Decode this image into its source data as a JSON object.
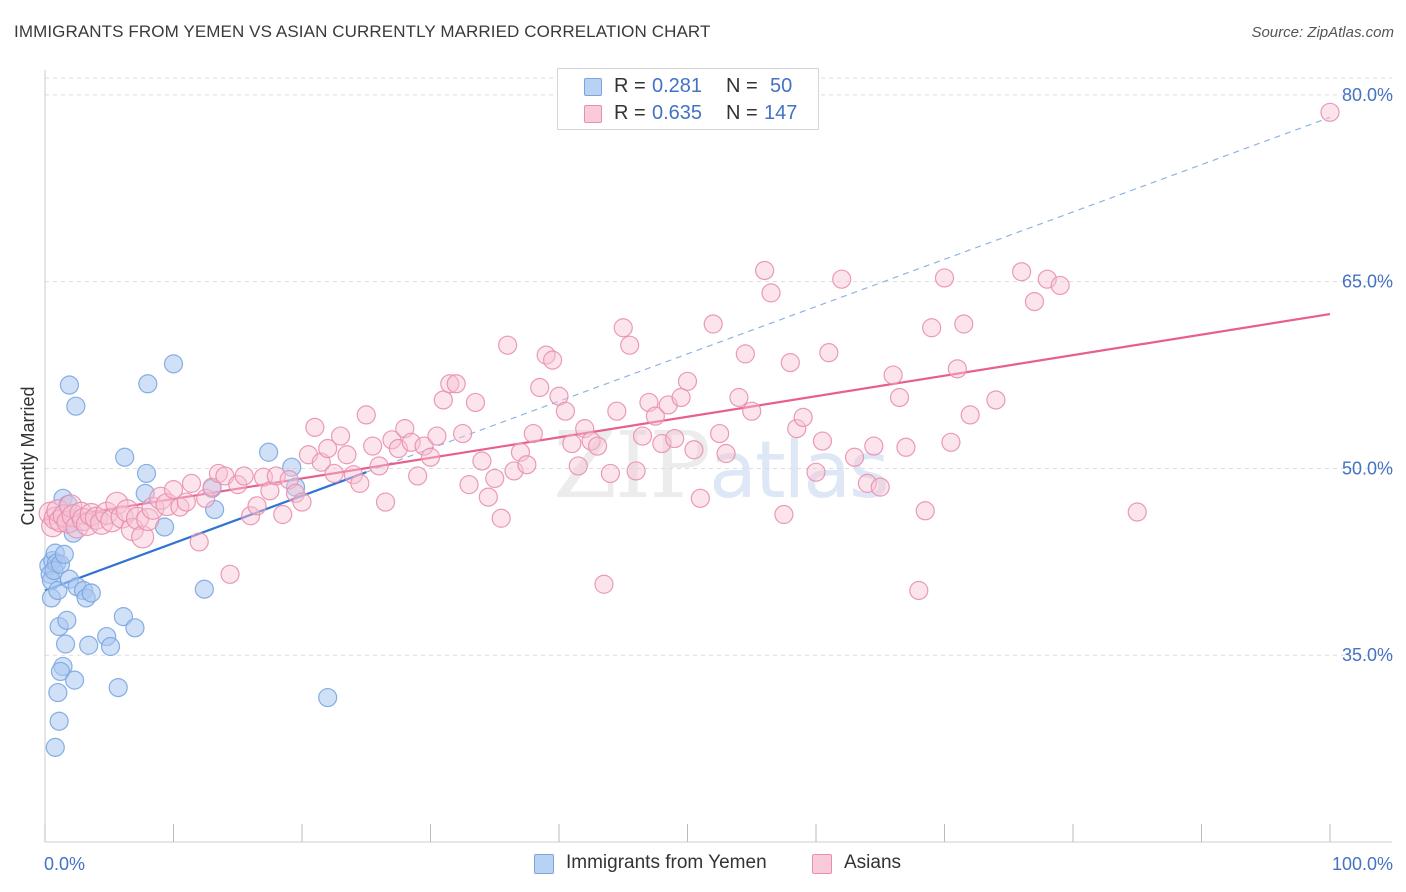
{
  "chart_data": {
    "type": "scatter",
    "title": "IMMIGRANTS FROM YEMEN VS ASIAN CURRENTLY MARRIED CORRELATION CHART",
    "source": "Source: ZipAtlas.com",
    "xlabel": "",
    "ylabel": "Currently Married",
    "xlim": [
      0,
      100
    ],
    "ylim": [
      20,
      82
    ],
    "x_tick_labels": [
      "0.0%",
      "100.0%"
    ],
    "y_ticks": [
      35,
      50,
      65,
      80
    ],
    "y_tick_labels": [
      "35.0%",
      "50.0%",
      "65.0%",
      "80.0%"
    ],
    "grid": true,
    "watermark": "ZIPatlas",
    "legend_stats": [
      {
        "r_label": "R =",
        "r_value": "0.281",
        "n_label": "N =",
        "n_value": "50"
      },
      {
        "r_label": "R =",
        "r_value": "0.635",
        "n_label": "N =",
        "n_value": "147"
      }
    ],
    "series": [
      {
        "name": "Immigrants from Yemen",
        "color": "#7aa6e0",
        "fill": "#a9c7f0",
        "line_color": "#2f74d0",
        "trend": {
          "x0": 0,
          "y0": 40.2,
          "x1": 25,
          "y1": 49.7
        },
        "points": [
          [
            0.3,
            42.2
          ],
          [
            0.4,
            41.5
          ],
          [
            0.5,
            41.0
          ],
          [
            0.6,
            42.6
          ],
          [
            0.5,
            39.6
          ],
          [
            0.8,
            43.2
          ],
          [
            0.9,
            42.4
          ],
          [
            0.7,
            41.8
          ],
          [
            1.0,
            40.2
          ],
          [
            1.2,
            42.3
          ],
          [
            1.5,
            43.1
          ],
          [
            1.4,
            47.6
          ],
          [
            1.8,
            47.1
          ],
          [
            2.0,
            45.6
          ],
          [
            2.2,
            44.8
          ],
          [
            1.1,
            37.3
          ],
          [
            1.7,
            37.8
          ],
          [
            1.6,
            35.9
          ],
          [
            1.4,
            34.1
          ],
          [
            1.2,
            33.7
          ],
          [
            2.3,
            33.0
          ],
          [
            1.0,
            32.0
          ],
          [
            1.1,
            29.7
          ],
          [
            0.8,
            27.6
          ],
          [
            1.9,
            41.1
          ],
          [
            2.5,
            40.5
          ],
          [
            3.0,
            40.2
          ],
          [
            3.2,
            39.6
          ],
          [
            3.6,
            40.0
          ],
          [
            3.4,
            35.8
          ],
          [
            4.8,
            36.5
          ],
          [
            5.1,
            35.7
          ],
          [
            5.7,
            32.4
          ],
          [
            6.1,
            38.1
          ],
          [
            7.0,
            37.2
          ],
          [
            6.2,
            50.9
          ],
          [
            7.9,
            49.6
          ],
          [
            7.8,
            48.0
          ],
          [
            9.3,
            45.3
          ],
          [
            10.0,
            58.4
          ],
          [
            8.0,
            56.8
          ],
          [
            1.9,
            56.7
          ],
          [
            2.4,
            55.0
          ],
          [
            13.0,
            48.4
          ],
          [
            13.2,
            46.7
          ],
          [
            12.4,
            40.3
          ],
          [
            17.4,
            51.3
          ],
          [
            19.2,
            50.1
          ],
          [
            19.5,
            48.5
          ],
          [
            22.0,
            31.6
          ]
        ]
      },
      {
        "name": "Asians",
        "color": "#e98fae",
        "fill": "#f7c3d4",
        "line_color": "#e8608a",
        "trend": {
          "x0": 0,
          "y0": 45.9,
          "x1": 100,
          "y1": 62.4
        },
        "points": [
          [
            0.4,
            46.4
          ],
          [
            0.6,
            45.4
          ],
          [
            0.8,
            46.0
          ],
          [
            1.0,
            46.6
          ],
          [
            1.2,
            45.8
          ],
          [
            1.5,
            46.2
          ],
          [
            1.8,
            45.7
          ],
          [
            2.0,
            47.0
          ],
          [
            2.2,
            46.2
          ],
          [
            2.5,
            45.3
          ],
          [
            2.8,
            46.4
          ],
          [
            3.0,
            45.9
          ],
          [
            3.3,
            45.5
          ],
          [
            3.6,
            46.3
          ],
          [
            4.0,
            46.0
          ],
          [
            4.4,
            45.6
          ],
          [
            4.8,
            46.4
          ],
          [
            5.2,
            45.8
          ],
          [
            5.6,
            47.2
          ],
          [
            6.0,
            46.1
          ],
          [
            6.4,
            46.6
          ],
          [
            6.8,
            45.1
          ],
          [
            7.2,
            46.0
          ],
          [
            7.6,
            44.5
          ],
          [
            8.0,
            45.9
          ],
          [
            8.4,
            46.8
          ],
          [
            9.0,
            47.6
          ],
          [
            9.5,
            47.1
          ],
          [
            10.0,
            48.3
          ],
          [
            10.5,
            46.9
          ],
          [
            11.0,
            47.3
          ],
          [
            11.4,
            48.8
          ],
          [
            12.0,
            44.1
          ],
          [
            12.5,
            47.6
          ],
          [
            13.0,
            48.5
          ],
          [
            13.5,
            49.6
          ],
          [
            14.0,
            49.4
          ],
          [
            14.4,
            41.5
          ],
          [
            15.0,
            48.7
          ],
          [
            15.5,
            49.4
          ],
          [
            16.0,
            46.2
          ],
          [
            16.5,
            47.0
          ],
          [
            17.0,
            49.3
          ],
          [
            17.5,
            48.2
          ],
          [
            18.0,
            49.4
          ],
          [
            18.5,
            46.3
          ],
          [
            19.0,
            49.1
          ],
          [
            19.5,
            48.0
          ],
          [
            20.0,
            47.3
          ],
          [
            20.5,
            51.1
          ],
          [
            21.0,
            53.3
          ],
          [
            21.5,
            50.5
          ],
          [
            22.0,
            51.6
          ],
          [
            22.5,
            49.6
          ],
          [
            23.0,
            52.6
          ],
          [
            23.5,
            51.1
          ],
          [
            24.0,
            49.5
          ],
          [
            24.5,
            48.8
          ],
          [
            25.0,
            54.3
          ],
          [
            25.5,
            51.8
          ],
          [
            26.0,
            50.2
          ],
          [
            26.5,
            47.3
          ],
          [
            27.0,
            52.3
          ],
          [
            27.5,
            51.6
          ],
          [
            28.0,
            53.2
          ],
          [
            28.5,
            52.1
          ],
          [
            29.0,
            49.4
          ],
          [
            29.5,
            51.8
          ],
          [
            30.0,
            50.9
          ],
          [
            30.5,
            52.6
          ],
          [
            31.0,
            55.5
          ],
          [
            31.5,
            56.8
          ],
          [
            32.0,
            56.8
          ],
          [
            32.5,
            52.8
          ],
          [
            33.0,
            48.7
          ],
          [
            33.5,
            55.3
          ],
          [
            34.0,
            50.6
          ],
          [
            34.5,
            47.7
          ],
          [
            35.0,
            49.2
          ],
          [
            35.5,
            46.0
          ],
          [
            36.0,
            59.9
          ],
          [
            36.5,
            49.8
          ],
          [
            37.0,
            51.3
          ],
          [
            37.5,
            50.3
          ],
          [
            38.0,
            52.8
          ],
          [
            38.5,
            56.5
          ],
          [
            39.0,
            59.1
          ],
          [
            39.5,
            58.7
          ],
          [
            40.0,
            55.8
          ],
          [
            40.5,
            54.6
          ],
          [
            41.0,
            52.0
          ],
          [
            41.5,
            50.2
          ],
          [
            42.0,
            53.2
          ],
          [
            42.5,
            52.2
          ],
          [
            43.0,
            51.8
          ],
          [
            43.5,
            40.7
          ],
          [
            44.0,
            49.6
          ],
          [
            44.5,
            54.6
          ],
          [
            45.0,
            61.3
          ],
          [
            45.5,
            59.9
          ],
          [
            46.0,
            49.8
          ],
          [
            46.5,
            52.6
          ],
          [
            47.0,
            55.3
          ],
          [
            47.5,
            54.2
          ],
          [
            48.0,
            52.0
          ],
          [
            48.5,
            55.1
          ],
          [
            49.0,
            52.4
          ],
          [
            49.5,
            55.7
          ],
          [
            50.0,
            57.0
          ],
          [
            50.5,
            51.5
          ],
          [
            51.0,
            47.6
          ],
          [
            52.0,
            61.6
          ],
          [
            52.5,
            52.8
          ],
          [
            53.0,
            51.2
          ],
          [
            54.0,
            55.7
          ],
          [
            54.5,
            59.2
          ],
          [
            55.0,
            54.6
          ],
          [
            56.0,
            65.9
          ],
          [
            56.5,
            64.1
          ],
          [
            57.5,
            46.3
          ],
          [
            58.0,
            58.5
          ],
          [
            58.5,
            53.2
          ],
          [
            59.0,
            54.1
          ],
          [
            60.0,
            49.7
          ],
          [
            60.5,
            52.2
          ],
          [
            61.0,
            59.3
          ],
          [
            62.0,
            65.2
          ],
          [
            63.0,
            50.9
          ],
          [
            64.0,
            48.8
          ],
          [
            64.5,
            51.8
          ],
          [
            65.0,
            48.5
          ],
          [
            66.0,
            57.5
          ],
          [
            66.5,
            55.7
          ],
          [
            67.0,
            51.7
          ],
          [
            68.0,
            40.2
          ],
          [
            68.5,
            46.6
          ],
          [
            69.0,
            61.3
          ],
          [
            70.0,
            65.3
          ],
          [
            70.5,
            52.1
          ],
          [
            71.0,
            58.0
          ],
          [
            71.5,
            61.6
          ],
          [
            72.0,
            54.3
          ],
          [
            74.0,
            55.5
          ],
          [
            76.0,
            65.8
          ],
          [
            77.0,
            63.4
          ],
          [
            78.0,
            65.2
          ],
          [
            79.0,
            64.7
          ],
          [
            85.0,
            46.5
          ],
          [
            100.0,
            78.6
          ]
        ]
      }
    ]
  },
  "legend_bottom": [
    {
      "label": "Immigrants from Yemen"
    },
    {
      "label": "Asians"
    }
  ]
}
